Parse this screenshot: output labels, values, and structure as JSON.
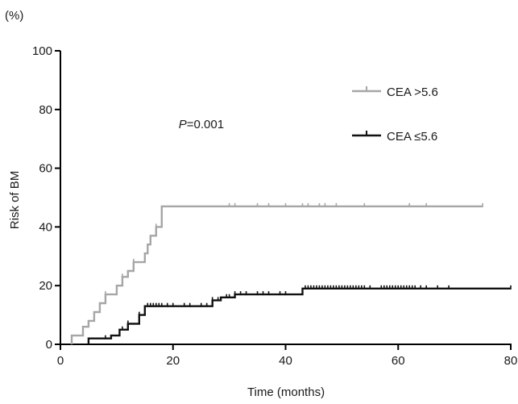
{
  "chart_data": {
    "type": "line",
    "step": true,
    "title": "",
    "unit_label": "(%)",
    "xlabel": "Time (months)",
    "ylabel": "Risk of BM",
    "xlim": [
      0,
      80
    ],
    "ylim": [
      0,
      100
    ],
    "x_ticks": [
      0,
      20,
      40,
      60,
      80
    ],
    "y_ticks": [
      0,
      20,
      40,
      60,
      80,
      100
    ],
    "grid": false,
    "legend_position": "top-right",
    "annotation": {
      "italic": "P",
      "rest": "=0.001",
      "x": 21,
      "y": 75
    },
    "series": [
      {
        "name": "CEA >5.6",
        "color": "#a6a6a6",
        "steps": [
          [
            2,
            0
          ],
          [
            2,
            3
          ],
          [
            4,
            3
          ],
          [
            4,
            6
          ],
          [
            5,
            6
          ],
          [
            5,
            8
          ],
          [
            6,
            8
          ],
          [
            6,
            11
          ],
          [
            7,
            11
          ],
          [
            7,
            14
          ],
          [
            8,
            14
          ],
          [
            8,
            17
          ],
          [
            10,
            17
          ],
          [
            10,
            20
          ],
          [
            11,
            20
          ],
          [
            11,
            23
          ],
          [
            12,
            23
          ],
          [
            12,
            25
          ],
          [
            13,
            25
          ],
          [
            13,
            28
          ],
          [
            15,
            28
          ],
          [
            15,
            31
          ],
          [
            15.5,
            31
          ],
          [
            15.5,
            34
          ],
          [
            16,
            34
          ],
          [
            16,
            37
          ],
          [
            17,
            37
          ],
          [
            17,
            40
          ],
          [
            18,
            40
          ],
          [
            18,
            47
          ],
          [
            75,
            47
          ]
        ],
        "censored": [
          8,
          11,
          13,
          17,
          30,
          31,
          35,
          37,
          40,
          43,
          44,
          46,
          47,
          49,
          54,
          62,
          65,
          75
        ]
      },
      {
        "name": "CEA ≤5.6",
        "color": "#111111",
        "steps": [
          [
            5,
            0
          ],
          [
            5,
            2
          ],
          [
            9,
            2
          ],
          [
            9,
            3
          ],
          [
            10.5,
            3
          ],
          [
            10.5,
            5
          ],
          [
            12,
            5
          ],
          [
            12,
            7
          ],
          [
            14,
            7
          ],
          [
            14,
            10
          ],
          [
            15,
            10
          ],
          [
            15,
            13
          ],
          [
            27,
            13
          ],
          [
            27,
            15
          ],
          [
            28.5,
            15
          ],
          [
            28.5,
            16
          ],
          [
            31,
            16
          ],
          [
            31,
            17
          ],
          [
            43,
            17
          ],
          [
            43,
            19
          ],
          [
            80,
            19
          ]
        ],
        "censored": [
          8,
          11,
          12,
          14,
          15.5,
          16,
          16.5,
          17,
          17.5,
          18,
          19,
          20,
          22,
          23,
          25,
          26,
          27,
          28,
          29.5,
          30,
          31,
          32,
          33,
          35,
          36,
          37,
          39,
          40,
          43.5,
          44,
          44.5,
          45,
          45.5,
          46,
          46.5,
          47,
          47.5,
          48,
          48.5,
          49,
          49.5,
          50,
          50.5,
          51,
          51.5,
          52,
          52.5,
          53,
          53.5,
          54,
          55,
          57,
          57.5,
          58,
          58.5,
          59,
          59.5,
          60,
          60.5,
          61,
          61.5,
          62,
          62.5,
          63,
          64,
          65,
          67,
          69,
          80
        ]
      }
    ]
  }
}
